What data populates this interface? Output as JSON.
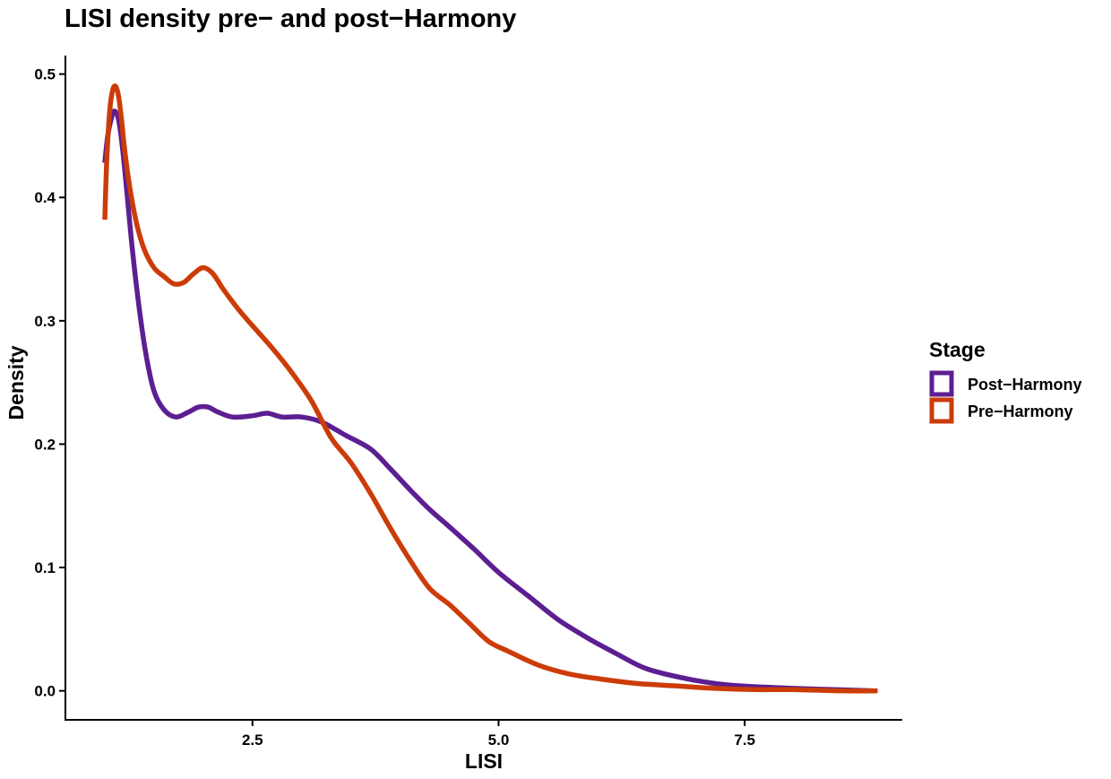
{
  "chart_data": {
    "type": "line",
    "title": "LISI density pre− and post−Harmony",
    "xlabel": "LISI",
    "ylabel": "Density",
    "xlim": [
      0.6,
      9.1
    ],
    "ylim": [
      -0.0235,
      0.515
    ],
    "x_ticks": [
      2.5,
      5.0,
      7.5
    ],
    "x_tick_labels": [
      "2.5",
      "5.0",
      "7.5"
    ],
    "y_ticks": [
      0.0,
      0.1,
      0.2,
      0.3,
      0.4,
      0.5
    ],
    "y_tick_labels": [
      "0.0",
      "0.1",
      "0.2",
      "0.3",
      "0.4",
      "0.5"
    ],
    "grid": false,
    "legend": {
      "title": "Stage",
      "position": "right"
    },
    "series": [
      {
        "name": "Post−Harmony",
        "color": "#5C1E91",
        "x": [
          1.0,
          1.03,
          1.07,
          1.1,
          1.14,
          1.18,
          1.22,
          1.28,
          1.35,
          1.42,
          1.5,
          1.6,
          1.72,
          1.85,
          1.95,
          2.05,
          2.15,
          2.3,
          2.5,
          2.65,
          2.8,
          3.0,
          3.2,
          3.45,
          3.7,
          3.9,
          4.1,
          4.3,
          4.5,
          4.75,
          5.0,
          5.3,
          5.6,
          5.9,
          6.2,
          6.5,
          6.9,
          7.3,
          7.7,
          8.0,
          8.4,
          8.8
        ],
        "values": [
          0.428,
          0.45,
          0.465,
          0.47,
          0.463,
          0.44,
          0.408,
          0.358,
          0.31,
          0.272,
          0.243,
          0.228,
          0.222,
          0.226,
          0.23,
          0.23,
          0.226,
          0.222,
          0.223,
          0.225,
          0.222,
          0.222,
          0.218,
          0.207,
          0.196,
          0.18,
          0.163,
          0.147,
          0.133,
          0.115,
          0.096,
          0.077,
          0.058,
          0.043,
          0.03,
          0.018,
          0.01,
          0.005,
          0.003,
          0.002,
          0.001,
          0.0
        ]
      },
      {
        "name": "Pre−Harmony",
        "color": "#CC3C08",
        "x": [
          1.0,
          1.02,
          1.05,
          1.08,
          1.11,
          1.14,
          1.17,
          1.2,
          1.25,
          1.32,
          1.4,
          1.5,
          1.6,
          1.7,
          1.8,
          1.9,
          2.0,
          2.1,
          2.2,
          2.35,
          2.5,
          2.7,
          2.9,
          3.1,
          3.3,
          3.5,
          3.7,
          3.9,
          4.1,
          4.3,
          4.5,
          4.7,
          4.9,
          5.1,
          5.4,
          5.7,
          6.0,
          6.4,
          6.8,
          7.2,
          7.6,
          8.0,
          8.5,
          8.85
        ],
        "values": [
          0.382,
          0.43,
          0.47,
          0.487,
          0.49,
          0.482,
          0.463,
          0.44,
          0.41,
          0.38,
          0.358,
          0.343,
          0.336,
          0.33,
          0.331,
          0.338,
          0.343,
          0.338,
          0.326,
          0.31,
          0.296,
          0.278,
          0.258,
          0.235,
          0.205,
          0.185,
          0.16,
          0.132,
          0.106,
          0.083,
          0.07,
          0.055,
          0.04,
          0.032,
          0.021,
          0.014,
          0.01,
          0.006,
          0.004,
          0.002,
          0.001,
          0.001,
          0.0,
          0.0
        ]
      }
    ]
  }
}
